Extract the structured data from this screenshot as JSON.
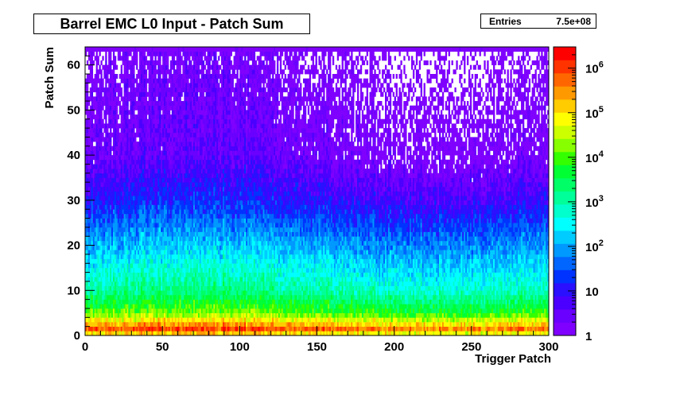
{
  "chart_data": {
    "type": "heatmap",
    "title": "Barrel EMC L0 Input - Patch Sum",
    "xlabel": "Trigger Patch",
    "ylabel": "Patch Sum",
    "xlim": [
      0,
      300
    ],
    "ylim": [
      0,
      64
    ],
    "x_ticks": [
      0,
      50,
      100,
      150,
      200,
      250,
      300
    ],
    "y_ticks": [
      0,
      10,
      20,
      30,
      40,
      50,
      60
    ],
    "z_scale": "log",
    "zlim": [
      1,
      3000000
    ],
    "z_tick_labels": [
      {
        "value": 1,
        "label": "1"
      },
      {
        "value": 10,
        "label": "10"
      },
      {
        "value": 100,
        "label": "10",
        "exp": "2"
      },
      {
        "value": 1000,
        "label": "10",
        "exp": "3"
      },
      {
        "value": 10000,
        "label": "10",
        "exp": "4"
      },
      {
        "value": 100000,
        "label": "10",
        "exp": "5"
      },
      {
        "value": 1000000,
        "label": "10",
        "exp": "6"
      }
    ],
    "color_palette": [
      "#7f00ff",
      "#6a00ff",
      "#4b00ff",
      "#2a10ff",
      "#0033ff",
      "#0066ff",
      "#0099ff",
      "#00ccff",
      "#00ffff",
      "#00ffcc",
      "#00ff99",
      "#00ff66",
      "#00ff33",
      "#33ff00",
      "#88ff00",
      "#ccff00",
      "#ffff00",
      "#ffcc00",
      "#ff9900",
      "#ff6600",
      "#ff3300",
      "#ff0000"
    ],
    "grid": false,
    "stats": {
      "label": "Entries",
      "value": "7.5e+08"
    },
    "row_peak_counts": [
      {
        "patch_sum": 0,
        "count": 10000
      },
      {
        "patch_sum": 1,
        "count": 1000000
      },
      {
        "patch_sum": 2,
        "count": 300000
      },
      {
        "patch_sum": 5,
        "count": 10000
      },
      {
        "patch_sum": 10,
        "count": 1000
      },
      {
        "patch_sum": 20,
        "count": 100
      },
      {
        "patch_sum": 30,
        "count": 10
      },
      {
        "patch_sum": 40,
        "count": 2
      },
      {
        "patch_sum": 63,
        "count": 1
      }
    ]
  }
}
